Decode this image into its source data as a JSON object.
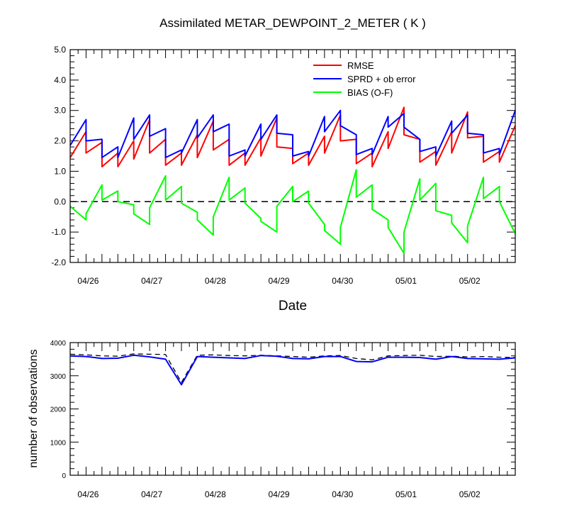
{
  "chart_data": [
    {
      "type": "line",
      "title": "Assimilated METAR_DEWPOINT_2_METER ( K )",
      "xlabel": "Date",
      "ylabel": "",
      "ylim": [
        -2.0,
        5.0
      ],
      "yticks": [
        -2.0,
        -1.0,
        0.0,
        1.0,
        2.0,
        3.0,
        4.0,
        5.0
      ],
      "ytick_labels": [
        "-2.0",
        "-1.0",
        "0.0",
        "1.0",
        "2.0",
        "3.0",
        "4.0",
        "5.0"
      ],
      "xlim": [
        0,
        28
      ],
      "xticks": [
        1,
        5,
        9,
        13,
        17,
        21,
        25
      ],
      "xtick_labels": [
        "04/26",
        "04/27",
        "04/28",
        "04/29",
        "04/30",
        "05/01",
        "05/02"
      ],
      "reference_line": {
        "y": 0.0,
        "style": "dashed"
      },
      "legend_position": "top-right",
      "series": [
        {
          "name": "RMSE",
          "color": "#ff0000",
          "x": [
            0,
            1,
            1,
            2,
            2,
            3,
            3,
            4,
            4,
            5,
            5,
            6,
            6,
            7,
            7,
            8,
            8,
            9,
            9,
            10,
            10,
            11,
            11,
            12,
            12,
            13,
            13,
            14,
            14,
            15,
            15,
            16,
            16,
            17,
            17,
            18,
            18,
            19,
            19,
            20,
            20,
            21,
            21,
            22,
            22,
            23,
            23,
            24,
            24,
            25,
            25,
            26,
            26,
            27,
            27,
            28
          ],
          "y": [
            1.45,
            2.3,
            1.6,
            1.95,
            1.15,
            1.6,
            1.15,
            2.0,
            1.4,
            2.7,
            1.6,
            2.05,
            1.2,
            1.6,
            1.2,
            2.2,
            1.45,
            2.65,
            1.7,
            2.05,
            1.2,
            1.6,
            1.2,
            2.1,
            1.5,
            2.75,
            1.8,
            1.75,
            1.25,
            1.6,
            1.2,
            2.15,
            1.6,
            2.85,
            2.0,
            2.05,
            1.25,
            1.6,
            1.15,
            2.3,
            1.75,
            3.1,
            2.2,
            2.05,
            1.3,
            1.65,
            1.2,
            2.3,
            1.6,
            2.95,
            2.1,
            2.15,
            1.3,
            1.65,
            1.3,
            2.5
          ]
        },
        {
          "name": "SPRD + ob error",
          "color": "#0000ff",
          "x": [
            0,
            1,
            1,
            2,
            2,
            3,
            3,
            4,
            4,
            5,
            5,
            6,
            6,
            7,
            7,
            8,
            8,
            9,
            9,
            10,
            10,
            11,
            11,
            12,
            12,
            13,
            13,
            14,
            14,
            15,
            15,
            16,
            16,
            17,
            17,
            18,
            18,
            19,
            19,
            20,
            20,
            21,
            21,
            22,
            22,
            23,
            23,
            24,
            24,
            25,
            25,
            26,
            26,
            27,
            27,
            28
          ],
          "y": [
            1.85,
            2.7,
            2.0,
            2.05,
            1.45,
            1.8,
            1.45,
            2.75,
            2.05,
            2.85,
            2.15,
            2.4,
            1.45,
            1.7,
            1.6,
            2.7,
            2.1,
            2.85,
            2.3,
            2.55,
            1.5,
            1.7,
            1.5,
            2.55,
            2.05,
            2.85,
            2.25,
            2.2,
            1.5,
            1.65,
            1.5,
            2.8,
            2.3,
            3.0,
            2.5,
            2.2,
            1.55,
            1.75,
            1.55,
            2.8,
            2.45,
            2.9,
            2.45,
            2.05,
            1.65,
            1.8,
            1.5,
            2.65,
            2.25,
            2.85,
            2.25,
            2.2,
            1.6,
            1.75,
            1.55,
            3.0
          ]
        },
        {
          "name": "BIAS (O-F)",
          "color": "#00ff00",
          "x": [
            0,
            1,
            1,
            2,
            2,
            3,
            3,
            4,
            4,
            5,
            5,
            6,
            6,
            7,
            7,
            8,
            8,
            9,
            9,
            10,
            10,
            11,
            11,
            12,
            12,
            13,
            13,
            14,
            14,
            15,
            15,
            16,
            16,
            17,
            17,
            18,
            18,
            19,
            19,
            20,
            20,
            21,
            21,
            22,
            22,
            23,
            23,
            24,
            24,
            25,
            25,
            26,
            26,
            27,
            27,
            28
          ],
          "y": [
            -0.15,
            -0.6,
            -0.4,
            0.55,
            0.05,
            0.35,
            0.0,
            -0.1,
            -0.4,
            -0.75,
            -0.2,
            0.85,
            0.05,
            0.5,
            -0.05,
            -0.35,
            -0.6,
            -1.1,
            -0.5,
            0.8,
            0.05,
            0.45,
            -0.05,
            -0.55,
            -0.65,
            -1.0,
            -0.15,
            0.5,
            0.0,
            0.35,
            -0.05,
            -0.75,
            -0.95,
            -1.4,
            -0.85,
            1.05,
            0.15,
            0.55,
            -0.25,
            -0.6,
            -0.85,
            -1.7,
            -1.0,
            0.75,
            0.05,
            0.6,
            -0.3,
            -0.45,
            -0.7,
            -1.35,
            -0.8,
            0.8,
            0.1,
            0.5,
            0.0,
            -1.05
          ]
        }
      ]
    },
    {
      "type": "line",
      "title": "",
      "xlabel": "",
      "ylabel": "number of observations",
      "ylim": [
        0,
        4000
      ],
      "yticks": [
        0,
        1000,
        2000,
        3000,
        4000
      ],
      "ytick_labels": [
        "0",
        "1000",
        "2000",
        "3000",
        "4000"
      ],
      "xlim": [
        0,
        28
      ],
      "xticks": [
        1,
        5,
        9,
        13,
        17,
        21,
        25
      ],
      "xtick_labels": [
        "04/26",
        "04/27",
        "04/28",
        "04/29",
        "04/30",
        "05/01",
        "05/02"
      ],
      "series": [
        {
          "color": "#000000",
          "style": "dashed",
          "x": [
            0,
            1,
            2,
            3,
            4,
            5,
            6,
            7,
            8,
            9,
            10,
            11,
            12,
            13,
            14,
            15,
            16,
            17,
            18,
            19,
            20,
            21,
            22,
            23,
            24,
            25,
            26,
            27,
            28
          ],
          "y": [
            3650,
            3630,
            3600,
            3590,
            3660,
            3650,
            3640,
            2800,
            3620,
            3630,
            3610,
            3600,
            3620,
            3600,
            3580,
            3560,
            3600,
            3610,
            3520,
            3480,
            3600,
            3610,
            3620,
            3580,
            3590,
            3570,
            3580,
            3560,
            3550
          ]
        },
        {
          "color": "#0000ff",
          "style": "solid",
          "x": [
            0,
            1,
            2,
            3,
            4,
            5,
            6,
            7,
            8,
            9,
            10,
            11,
            12,
            13,
            14,
            15,
            16,
            17,
            18,
            19,
            20,
            21,
            22,
            23,
            24,
            25,
            26,
            27,
            28
          ],
          "y": [
            3600,
            3580,
            3520,
            3530,
            3620,
            3570,
            3500,
            2730,
            3580,
            3560,
            3540,
            3520,
            3610,
            3590,
            3520,
            3510,
            3580,
            3580,
            3430,
            3420,
            3560,
            3560,
            3550,
            3500,
            3580,
            3520,
            3510,
            3500,
            3540
          ]
        }
      ]
    }
  ]
}
